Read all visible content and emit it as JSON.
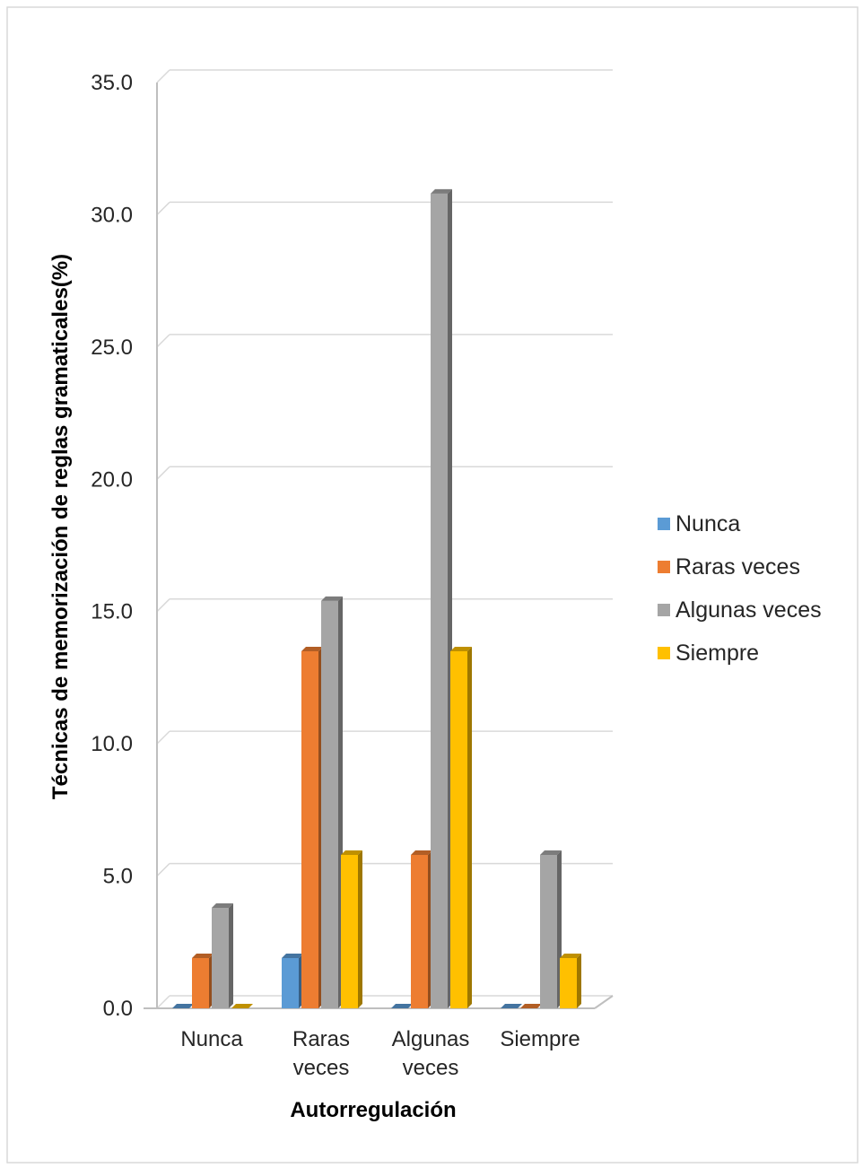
{
  "chart_data": {
    "type": "bar",
    "style": "3d-clustered-column",
    "categories": [
      [
        "Nunca"
      ],
      [
        "Raras",
        "veces"
      ],
      [
        "Algunas",
        "veces"
      ],
      [
        "Siempre"
      ]
    ],
    "series": [
      {
        "name": "Nunca",
        "values": [
          0.0,
          1.9,
          0.0,
          0.0
        ],
        "color": "#5B9BD5"
      },
      {
        "name": "Raras veces",
        "values": [
          1.9,
          13.5,
          5.8,
          0.0
        ],
        "color": "#ED7D31"
      },
      {
        "name": "Algunas veces",
        "values": [
          3.8,
          15.4,
          30.8,
          5.8
        ],
        "color": "#A5A5A5"
      },
      {
        "name": "Siempre",
        "values": [
          0.0,
          5.8,
          13.5,
          1.9
        ],
        "color": "#FFC000"
      }
    ],
    "yticks": [
      "0.0",
      "5.0",
      "10.0",
      "15.0",
      "20.0",
      "25.0",
      "30.0",
      "35.0"
    ],
    "ylim": [
      0,
      35
    ],
    "xlabel": "Autorregulación",
    "ylabel": "Técnicas de  memorización de reglas gramaticales(%)",
    "grid": true,
    "legend_position": "right"
  }
}
